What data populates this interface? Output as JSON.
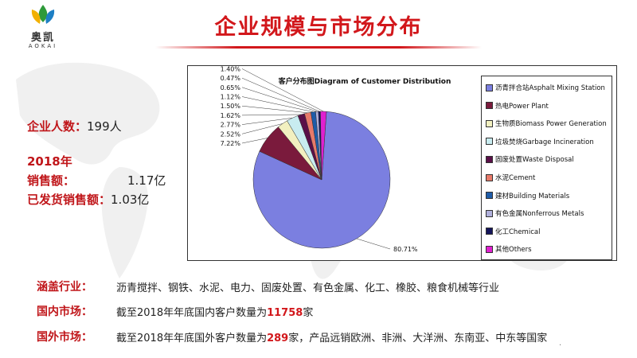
{
  "logo": {
    "name": "奥凯",
    "sub": "AOKAI",
    "colors": {
      "yellow": "#f2b000",
      "green": "#2e9a3a",
      "blue": "#1d7fc4"
    }
  },
  "title": "企业规模与市场分布",
  "stats": {
    "employees_label": "企业人数：",
    "employees_value": "199人",
    "year": "2018年",
    "sales_label": "销售额：",
    "sales_value": "1.17亿",
    "shipped_label": "已发货销售额：",
    "shipped_value": "1.03亿"
  },
  "chart_data": {
    "type": "pie",
    "title": "客户分布图Diagram of Customer Distribution",
    "legend_position": "right",
    "slices": [
      {
        "name": "沥青拌合站Asphalt Mixing Station",
        "value": 80.71,
        "label": "80.71%",
        "color": "#7b7fe0"
      },
      {
        "name": "热电Power Plant",
        "value": 7.22,
        "label": "7.22%",
        "color": "#7a1a3c"
      },
      {
        "name": "生物质Biomass Power Generation",
        "value": 2.52,
        "label": "2.52%",
        "color": "#f2f0c0"
      },
      {
        "name": "垃圾焚烧Garbage Incineration",
        "value": 2.77,
        "label": "2.77%",
        "color": "#c8ecf0"
      },
      {
        "name": "固废处置Waste Disposal",
        "value": 1.62,
        "label": "1.62%",
        "color": "#5a0f48"
      },
      {
        "name": "水泥Cement",
        "value": 1.5,
        "label": "1.50%",
        "color": "#e87a6a"
      },
      {
        "name": "建材Building Materials",
        "value": 1.12,
        "label": "1.12%",
        "color": "#1e5ca8"
      },
      {
        "name": "有色金属Nonferrous Metals",
        "value": 0.65,
        "label": "0.65%",
        "color": "#b0b0dc"
      },
      {
        "name": "化工Chemical",
        "value": 0.47,
        "label": "0.47%",
        "color": "#14145a"
      },
      {
        "name": "其他Others",
        "value": 1.4,
        "label": "1.40%",
        "color": "#e020d0"
      }
    ]
  },
  "industries": {
    "label": "涵盖行业：",
    "text": "沥青搅拌、钢铁、水泥、电力、固废处置、有色金属、化工、橡胶、粮食机械等行业"
  },
  "domestic": {
    "label": "国内市场：",
    "prefix": "截至2018年年底国内客户数量为",
    "count": "11758",
    "suffix": "家"
  },
  "overseas": {
    "label": "国外市场：",
    "prefix": "截至2018年年底国外客户数量为",
    "count": "289",
    "suffix": "家，产品远销欧洲、非洲、大洋洲、东南亚、中东等国家"
  },
  "footer_mark": "."
}
